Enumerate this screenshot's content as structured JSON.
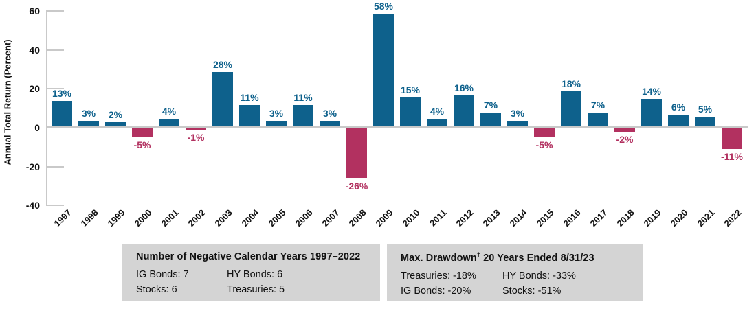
{
  "chart_data": {
    "type": "bar",
    "title": "",
    "ylabel": "Annual Total Return (Percent)",
    "xlabel": "",
    "y_ticks": [
      60,
      40,
      20,
      0,
      -20,
      -40
    ],
    "ylim": [
      -40,
      63
    ],
    "grid": false,
    "legend_position": "none",
    "categories": [
      "1997",
      "1998",
      "1999",
      "2000",
      "2001",
      "2002",
      "2003",
      "2004",
      "2005",
      "2006",
      "2007",
      "2008",
      "2009",
      "2010",
      "2011",
      "2012",
      "2013",
      "2014",
      "2015",
      "2016",
      "2017",
      "2018",
      "2019",
      "2020",
      "2021",
      "2022"
    ],
    "values": [
      13,
      3,
      2,
      -5,
      4,
      -1,
      28,
      11,
      3,
      11,
      3,
      -26,
      58,
      15,
      4,
      16,
      7,
      3,
      -5,
      18,
      7,
      -2,
      14,
      6,
      5,
      -11
    ],
    "labels": [
      "13%",
      "3%",
      "2%",
      "-5%",
      "4%",
      "-1%",
      "28%",
      "11%",
      "3%",
      "11%",
      "3%",
      "-26%",
      "58%",
      "15%",
      "4%",
      "16%",
      "7%",
      "3%",
      "-5%",
      "18%",
      "7%",
      "-2%",
      "14%",
      "6%",
      "5%",
      "-11%"
    ],
    "positive_color": "#0E618C",
    "negative_color": "#B23160",
    "axis_color": "#C9C9C9",
    "tick_label_color": "#111111"
  },
  "boxes": {
    "negative_years": {
      "title": "Number of Negative Calendar Years 1997–2022",
      "col1": [
        "IG Bonds: 7",
        "Stocks: 6"
      ],
      "col2": [
        "HY Bonds: 6",
        "Treasuries: 5"
      ]
    },
    "max_drawdown": {
      "title_main": "Max. Drawdown",
      "title_sup": "†",
      "title_rest": " 20 Years Ended 8/31/23",
      "col1": [
        "Treasuries: -18%",
        "IG Bonds: -20%"
      ],
      "col2": [
        "HY Bonds: -33%",
        "Stocks: -51%"
      ]
    }
  }
}
